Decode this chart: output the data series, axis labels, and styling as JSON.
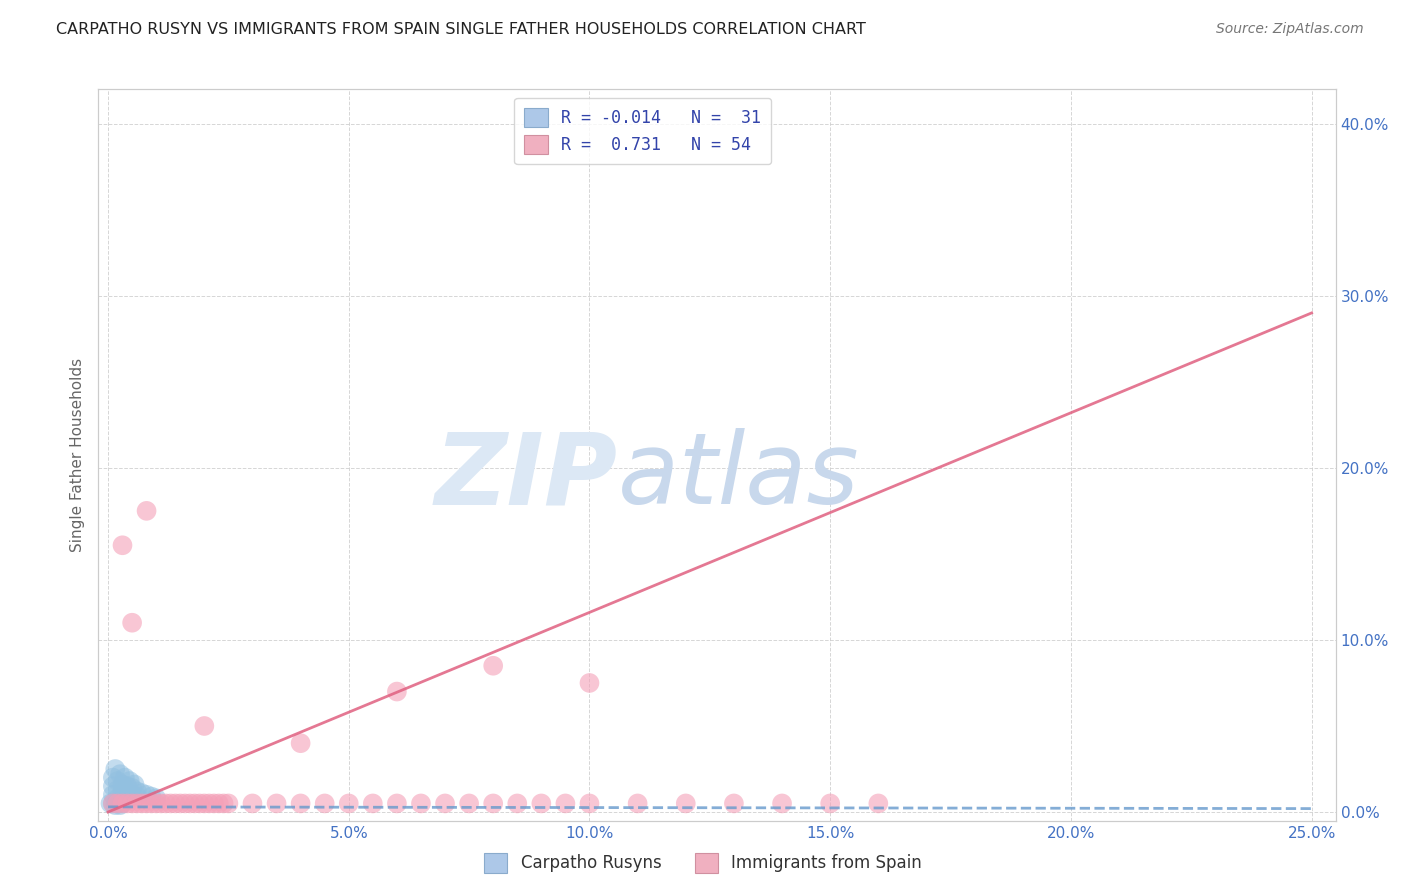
{
  "title": "CARPATHO RUSYN VS IMMIGRANTS FROM SPAIN SINGLE FATHER HOUSEHOLDS CORRELATION CHART",
  "source": "Source: ZipAtlas.com",
  "ylabel": "Single Father Households",
  "ytick_labels_right": [
    "0.0%",
    "10.0%",
    "20.0%",
    "30.0%",
    "40.0%"
  ],
  "ytick_values": [
    0.0,
    0.1,
    0.2,
    0.3,
    0.4
  ],
  "xtick_values": [
    0.0,
    0.05,
    0.1,
    0.15,
    0.2,
    0.25
  ],
  "xtick_labels": [
    "0.0%",
    "5.0%",
    "10.0%",
    "15.0%",
    "20.0%",
    "25.0%"
  ],
  "xlim": [
    -0.002,
    0.255
  ],
  "ylim": [
    -0.005,
    0.42
  ],
  "legend_label_1": "Carpatho Rusyns",
  "legend_label_2": "Immigrants from Spain",
  "blue_color": "#92c0e0",
  "pink_color": "#f4a0b8",
  "blue_scatter_x": [
    0.0005,
    0.001,
    0.0015,
    0.002,
    0.0025,
    0.003,
    0.001,
    0.002,
    0.003,
    0.004,
    0.001,
    0.002,
    0.003,
    0.004,
    0.005,
    0.006,
    0.001,
    0.002,
    0.003,
    0.004,
    0.005,
    0.006,
    0.007,
    0.008,
    0.009,
    0.01,
    0.0015,
    0.0025,
    0.0035,
    0.0045,
    0.0055
  ],
  "blue_scatter_y": [
    0.005,
    0.005,
    0.004,
    0.005,
    0.004,
    0.005,
    0.01,
    0.008,
    0.008,
    0.007,
    0.015,
    0.013,
    0.012,
    0.011,
    0.01,
    0.009,
    0.02,
    0.018,
    0.016,
    0.015,
    0.014,
    0.012,
    0.011,
    0.01,
    0.009,
    0.008,
    0.025,
    0.022,
    0.02,
    0.018,
    0.016
  ],
  "pink_scatter_x": [
    0.001,
    0.002,
    0.003,
    0.004,
    0.005,
    0.006,
    0.007,
    0.008,
    0.009,
    0.01,
    0.011,
    0.012,
    0.013,
    0.014,
    0.015,
    0.016,
    0.017,
    0.018,
    0.019,
    0.02,
    0.021,
    0.022,
    0.023,
    0.024,
    0.025,
    0.03,
    0.035,
    0.04,
    0.045,
    0.05,
    0.055,
    0.06,
    0.065,
    0.07,
    0.075,
    0.08,
    0.085,
    0.09,
    0.095,
    0.1,
    0.11,
    0.12,
    0.13,
    0.14,
    0.15,
    0.16,
    0.1,
    0.08,
    0.06,
    0.04,
    0.02,
    0.005,
    0.003,
    0.008
  ],
  "pink_scatter_y": [
    0.005,
    0.005,
    0.005,
    0.005,
    0.005,
    0.005,
    0.005,
    0.005,
    0.005,
    0.005,
    0.005,
    0.005,
    0.005,
    0.005,
    0.005,
    0.005,
    0.005,
    0.005,
    0.005,
    0.005,
    0.005,
    0.005,
    0.005,
    0.005,
    0.005,
    0.005,
    0.005,
    0.005,
    0.005,
    0.005,
    0.005,
    0.005,
    0.005,
    0.005,
    0.005,
    0.005,
    0.005,
    0.005,
    0.005,
    0.005,
    0.005,
    0.005,
    0.005,
    0.005,
    0.005,
    0.005,
    0.075,
    0.085,
    0.07,
    0.04,
    0.05,
    0.11,
    0.155,
    0.175
  ],
  "blue_line_x": [
    0.0,
    0.25
  ],
  "blue_line_y": [
    0.003,
    0.002
  ],
  "pink_line_x": [
    0.0,
    0.25
  ],
  "pink_line_y": [
    0.0,
    0.29
  ],
  "watermark_zip": "ZIP",
  "watermark_atlas": "atlas",
  "watermark_color": "#dce8f5",
  "background_color": "#ffffff",
  "grid_color": "#cccccc",
  "title_fontsize": 11.5,
  "source_fontsize": 10,
  "tick_color": "#4472c4",
  "axis_color": "#cccccc",
  "legend_r1": "R = -0.014",
  "legend_n1": "N =  31",
  "legend_r2": "R =  0.731",
  "legend_n2": "N = 54"
}
